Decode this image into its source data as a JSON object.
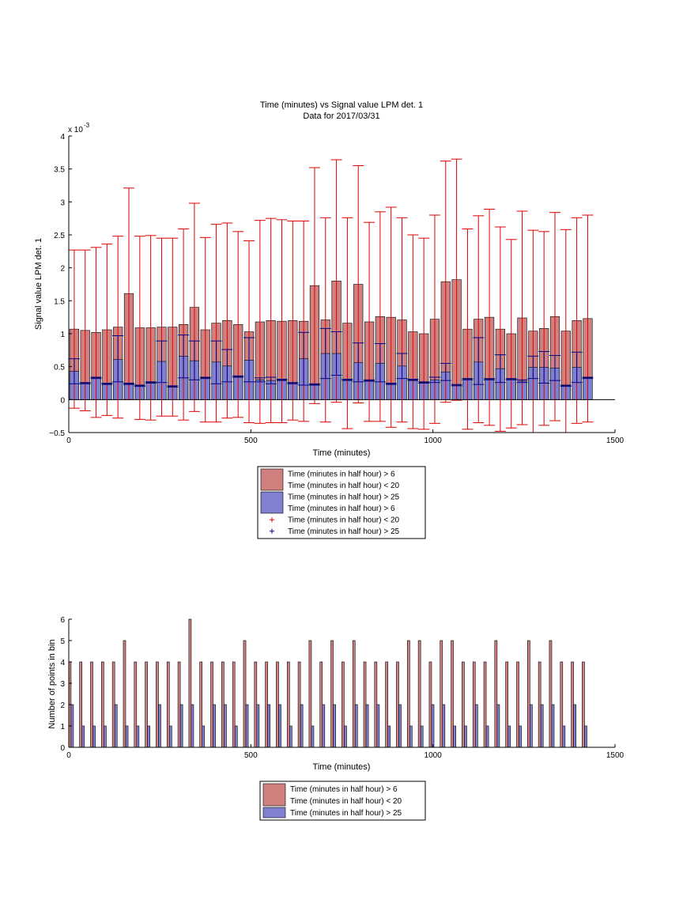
{
  "chart_data": [
    {
      "type": "bar",
      "title": "Time (minutes) vs Signal value LPM det. 1",
      "subtitle": "Data for 2017/03/31",
      "xlabel": "Time (minutes)",
      "ylabel": "Signal value LPM det. 1",
      "y_exponent_label": "x 10",
      "y_exponent_power": "-3",
      "xlim": [
        0,
        1500
      ],
      "ylim": [
        -0.5,
        4
      ],
      "x_ticks": [
        "0",
        "500",
        "1000",
        "1500"
      ],
      "y_ticks": [
        "−0.5",
        "0",
        "0.5",
        "1",
        "1.5",
        "2",
        "2.5",
        "3",
        "3.5",
        "4"
      ],
      "y_tick_values": [
        -0.5,
        0,
        0.5,
        1,
        1.5,
        2,
        2.5,
        3,
        3.5,
        4
      ],
      "grid": false,
      "legend_position": "below",
      "legend": [
        {
          "label": "Time (minutes in half hour) > 6",
          "symbol": "patch",
          "color": "#d18080"
        },
        {
          "label": "Time (minutes in half hour) < 20",
          "symbol": "none",
          "color": ""
        },
        {
          "label": "Time (minutes in half hour) > 25",
          "symbol": "patch",
          "color": "#8080d1"
        },
        {
          "label": "Time (minutes in half hour) > 6",
          "symbol": "none",
          "color": ""
        },
        {
          "label": "Time (minutes in half hour) < 20",
          "symbol": "plus",
          "color": "#e00000"
        },
        {
          "label": "Time (minutes in half hour) > 25",
          "symbol": "plus",
          "color": "#00008b"
        }
      ],
      "x": [
        15,
        45,
        75,
        105,
        135,
        165,
        195,
        225,
        255,
        285,
        315,
        345,
        375,
        405,
        435,
        465,
        495,
        525,
        555,
        585,
        615,
        645,
        675,
        705,
        735,
        765,
        795,
        825,
        855,
        885,
        915,
        945,
        975,
        1005,
        1035,
        1065,
        1095,
        1125,
        1155,
        1185,
        1215,
        1245,
        1275,
        1305,
        1335,
        1365,
        1395,
        1425
      ],
      "series": [
        {
          "name": "Time (minutes in half hour) > 6",
          "color": "#d18080",
          "errorbar_color": "#e00000",
          "values": [
            1.07,
            1.05,
            1.02,
            1.06,
            1.1,
            1.61,
            1.09,
            1.09,
            1.1,
            1.1,
            1.14,
            1.4,
            1.06,
            1.16,
            1.2,
            1.14,
            1.03,
            1.18,
            1.2,
            1.19,
            1.2,
            1.19,
            1.73,
            1.21,
            1.8,
            1.16,
            1.75,
            1.18,
            1.26,
            1.25,
            1.21,
            1.03,
            1.0,
            1.22,
            1.79,
            1.82,
            1.07,
            1.22,
            1.25,
            1.07,
            1.0,
            1.24,
            1.04,
            1.08,
            1.26,
            1.04,
            1.2,
            1.23
          ],
          "err_upper": [
            2.27,
            2.27,
            2.31,
            2.36,
            2.48,
            3.21,
            2.48,
            2.49,
            2.45,
            2.45,
            2.59,
            2.98,
            2.46,
            2.66,
            2.68,
            2.55,
            2.41,
            2.72,
            2.75,
            2.73,
            2.71,
            2.71,
            3.52,
            2.76,
            3.64,
            2.76,
            3.55,
            2.69,
            2.85,
            2.92,
            2.76,
            2.5,
            2.45,
            2.8,
            3.62,
            3.65,
            2.59,
            2.79,
            2.89,
            2.62,
            2.43,
            2.86,
            2.57,
            2.55,
            2.84,
            2.58,
            2.76,
            2.8
          ],
          "err_lower": [
            -0.13,
            -0.17,
            -0.27,
            -0.24,
            -0.28,
            0.0,
            -0.3,
            -0.31,
            -0.25,
            -0.25,
            -0.31,
            -0.18,
            -0.34,
            -0.34,
            -0.28,
            -0.27,
            -0.35,
            -0.36,
            -0.35,
            -0.35,
            -0.31,
            -0.33,
            -0.06,
            -0.34,
            -0.04,
            -0.44,
            -0.05,
            -0.33,
            -0.33,
            -0.42,
            -0.34,
            -0.44,
            -0.45,
            -0.36,
            -0.04,
            -0.01,
            -0.45,
            -0.35,
            -0.39,
            -0.48,
            -0.43,
            -0.38,
            -0.5,
            -0.39,
            -0.32,
            -0.5,
            -0.36,
            -0.34
          ]
        },
        {
          "name": "Time (minutes in half hour) > 25",
          "color": "#8080d1",
          "errorbar_color": "#00008b",
          "values": [
            0.43,
            0.25,
            0.33,
            0.24,
            0.61,
            0.24,
            0.21,
            0.26,
            0.58,
            0.2,
            0.66,
            0.59,
            0.33,
            0.57,
            0.51,
            0.35,
            0.6,
            0.3,
            0.29,
            0.3,
            0.25,
            0.62,
            0.23,
            0.7,
            0.7,
            0.3,
            0.56,
            0.29,
            0.55,
            0.24,
            0.51,
            0.3,
            0.26,
            0.3,
            0.42,
            0.22,
            0.31,
            0.57,
            0.31,
            0.47,
            0.31,
            0.28,
            0.49,
            0.49,
            0.48,
            0.21,
            0.49,
            0.33
          ],
          "err_upper": [
            0.62,
            0.26,
            0.34,
            0.25,
            0.97,
            0.25,
            0.22,
            0.27,
            0.89,
            0.21,
            0.98,
            0.89,
            0.34,
            0.89,
            0.76,
            0.36,
            0.94,
            0.33,
            0.34,
            0.31,
            0.26,
            1.02,
            0.24,
            1.08,
            1.03,
            0.31,
            0.86,
            0.3,
            0.85,
            0.25,
            0.7,
            0.31,
            0.27,
            0.34,
            0.55,
            0.23,
            0.32,
            0.94,
            0.32,
            0.68,
            0.32,
            0.3,
            0.66,
            0.73,
            0.67,
            0.22,
            0.72,
            0.34
          ],
          "err_lower": [
            0.24,
            0.24,
            0.32,
            0.23,
            0.27,
            0.23,
            0.2,
            0.25,
            0.26,
            0.19,
            0.33,
            0.3,
            0.32,
            0.24,
            0.27,
            0.34,
            0.27,
            0.27,
            0.24,
            0.29,
            0.24,
            0.22,
            0.22,
            0.32,
            0.37,
            0.29,
            0.27,
            0.28,
            0.27,
            0.23,
            0.32,
            0.29,
            0.25,
            0.26,
            0.29,
            0.21,
            0.3,
            0.23,
            0.3,
            0.26,
            0.3,
            0.26,
            0.32,
            0.25,
            0.29,
            0.2,
            0.26,
            0.32
          ]
        }
      ]
    },
    {
      "type": "bar",
      "xlabel": "Time (minutes)",
      "ylabel": "Number of points in bin",
      "xlim": [
        0,
        1500
      ],
      "ylim": [
        0,
        6
      ],
      "x_ticks": [
        "0",
        "500",
        "1000",
        "1500"
      ],
      "y_ticks": [
        "0",
        "1",
        "2",
        "3",
        "4",
        "5",
        "6"
      ],
      "y_tick_values": [
        0,
        1,
        2,
        3,
        4,
        5,
        6
      ],
      "grid": false,
      "legend_position": "below",
      "legend": [
        {
          "label": "Time (minutes in half hour) > 6",
          "symbol": "patch",
          "color": "#d18080"
        },
        {
          "label": "Time (minutes in half hour) < 20",
          "symbol": "none",
          "color": ""
        },
        {
          "label": "Time (minutes in half hour) > 25",
          "symbol": "patch",
          "color": "#8080d1"
        }
      ],
      "x": [
        15,
        45,
        75,
        105,
        135,
        165,
        195,
        225,
        255,
        285,
        315,
        345,
        375,
        405,
        435,
        465,
        495,
        525,
        555,
        585,
        615,
        645,
        675,
        705,
        735,
        765,
        795,
        825,
        855,
        885,
        915,
        945,
        975,
        1005,
        1035,
        1065,
        1095,
        1125,
        1155,
        1185,
        1215,
        1245,
        1275,
        1305,
        1335,
        1365,
        1395,
        1425
      ],
      "series": [
        {
          "name": "Time (minutes in half hour) > 6",
          "color": "#d18080",
          "values": [
            4,
            4,
            4,
            4,
            4,
            5,
            4,
            4,
            4,
            4,
            4,
            6,
            4,
            4,
            4,
            4,
            5,
            4,
            4,
            4,
            4,
            4,
            5,
            4,
            5,
            4,
            5,
            4,
            4,
            4,
            4,
            5,
            5,
            4,
            5,
            5,
            4,
            4,
            4,
            5,
            4,
            4,
            5,
            4,
            5,
            4,
            4,
            4
          ]
        },
        {
          "name": "Time (minutes in half hour) > 25",
          "color": "#8080d1",
          "values": [
            2,
            1,
            1,
            1,
            2,
            1,
            1,
            1,
            2,
            1,
            2,
            2,
            1,
            2,
            2,
            1,
            2,
            2,
            2,
            2,
            1,
            2,
            1,
            2,
            2,
            1,
            2,
            2,
            2,
            1,
            2,
            1,
            1,
            2,
            2,
            1,
            1,
            2,
            1,
            2,
            1,
            1,
            2,
            2,
            2,
            1,
            2,
            1
          ]
        }
      ]
    }
  ]
}
